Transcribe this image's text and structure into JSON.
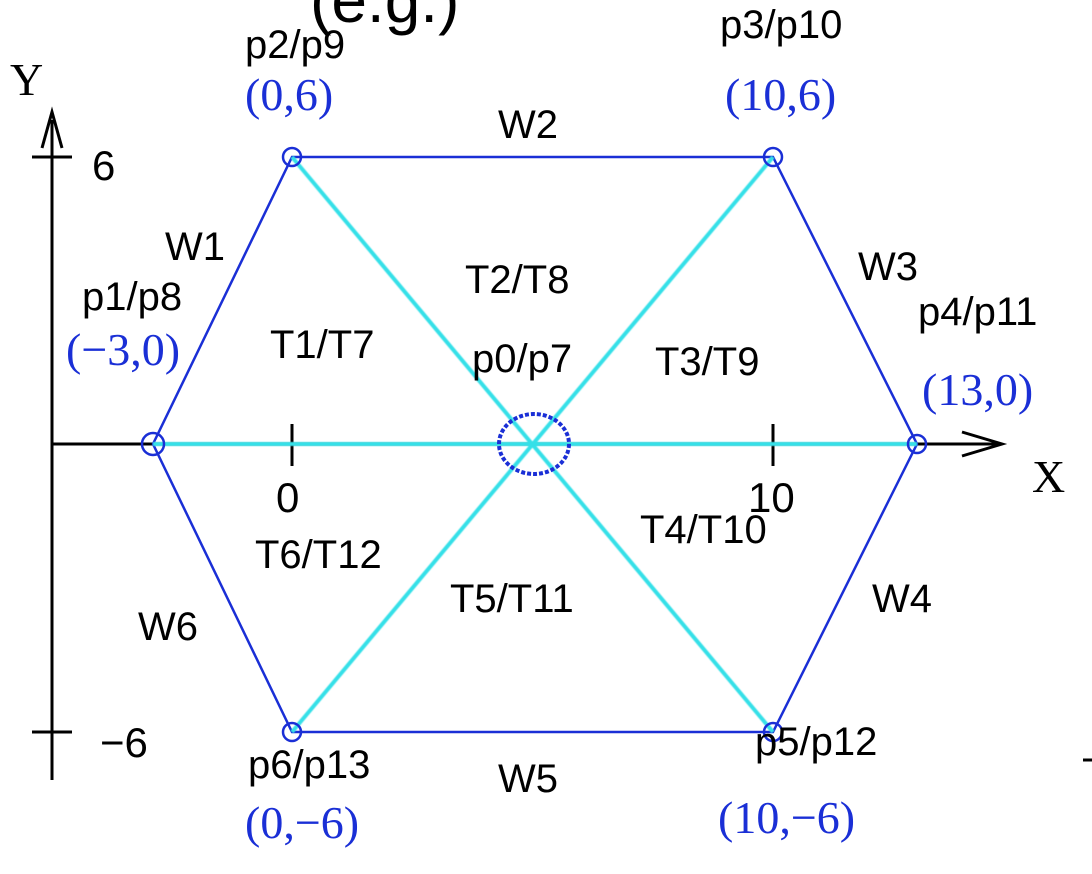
{
  "title_fragment": "(e.g.)",
  "axes": {
    "x_label": "X",
    "y_label": "Y",
    "x_ticks": [
      "0",
      "10"
    ],
    "y_ticks": [
      "6",
      "−6"
    ]
  },
  "points": [
    {
      "id": "p0",
      "label": "p0/p7",
      "x": 5,
      "y": 0
    },
    {
      "id": "p1",
      "label": "p1/p8",
      "coord": "(−3,0)",
      "x": -3,
      "y": 0
    },
    {
      "id": "p2",
      "label": "p2/p9",
      "coord": "(0,6)",
      "x": 0,
      "y": 6
    },
    {
      "id": "p3",
      "label": "p3/p10",
      "coord": "(10,6)",
      "x": 10,
      "y": 6
    },
    {
      "id": "p4",
      "label": "p4/p11",
      "coord": "(13,0)",
      "x": 13,
      "y": 0
    },
    {
      "id": "p5",
      "label": "p5/p12",
      "coord": "(10,−6)",
      "x": 10,
      "y": -6
    },
    {
      "id": "p6",
      "label": "p6/p13",
      "coord": "(0,−6)",
      "x": 0,
      "y": -6
    }
  ],
  "walls": [
    "W1",
    "W2",
    "W3",
    "W4",
    "W5",
    "W6"
  ],
  "triangles": [
    "T1/T7",
    "T2/T8",
    "T3/T9",
    "T4/T10",
    "T5/T11",
    "T6/T12"
  ],
  "colors": {
    "outline": "#1a2fd6",
    "spoke": "#35e0e8",
    "coord_text": "#1a2fd6",
    "text": "#000000"
  }
}
